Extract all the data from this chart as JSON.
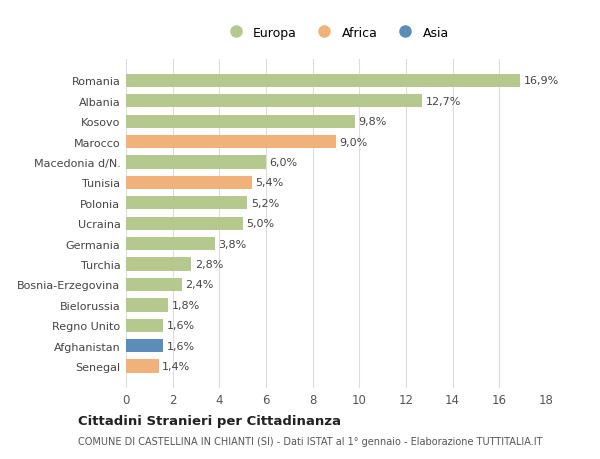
{
  "categories": [
    "Senegal",
    "Afghanistan",
    "Regno Unito",
    "Bielorussia",
    "Bosnia-Erzegovina",
    "Turchia",
    "Germania",
    "Ucraina",
    "Polonia",
    "Tunisia",
    "Macedonia d/N.",
    "Marocco",
    "Kosovo",
    "Albania",
    "Romania"
  ],
  "values": [
    1.4,
    1.6,
    1.6,
    1.8,
    2.4,
    2.8,
    3.8,
    5.0,
    5.2,
    5.4,
    6.0,
    9.0,
    9.8,
    12.7,
    16.9
  ],
  "labels": [
    "1,4%",
    "1,6%",
    "1,6%",
    "1,8%",
    "2,4%",
    "2,8%",
    "3,8%",
    "5,0%",
    "5,2%",
    "5,4%",
    "6,0%",
    "9,0%",
    "9,8%",
    "12,7%",
    "16,9%"
  ],
  "continent": [
    "Africa",
    "Asia",
    "Europa",
    "Europa",
    "Europa",
    "Europa",
    "Europa",
    "Europa",
    "Europa",
    "Africa",
    "Europa",
    "Africa",
    "Europa",
    "Europa",
    "Europa"
  ],
  "colors": {
    "Europa": "#b5c98e",
    "Africa": "#f0b27a",
    "Asia": "#5b8db8"
  },
  "legend_order": [
    "Europa",
    "Africa",
    "Asia"
  ],
  "xlim": [
    0,
    18
  ],
  "xticks": [
    0,
    2,
    4,
    6,
    8,
    10,
    12,
    14,
    16,
    18
  ],
  "title": "Cittadini Stranieri per Cittadinanza",
  "subtitle": "COMUNE DI CASTELLINA IN CHIANTI (SI) - Dati ISTAT al 1° gennaio - Elaborazione TUTTITALIA.IT",
  "bg_color": "#ffffff",
  "grid_color": "#dddddd",
  "bar_height": 0.65
}
